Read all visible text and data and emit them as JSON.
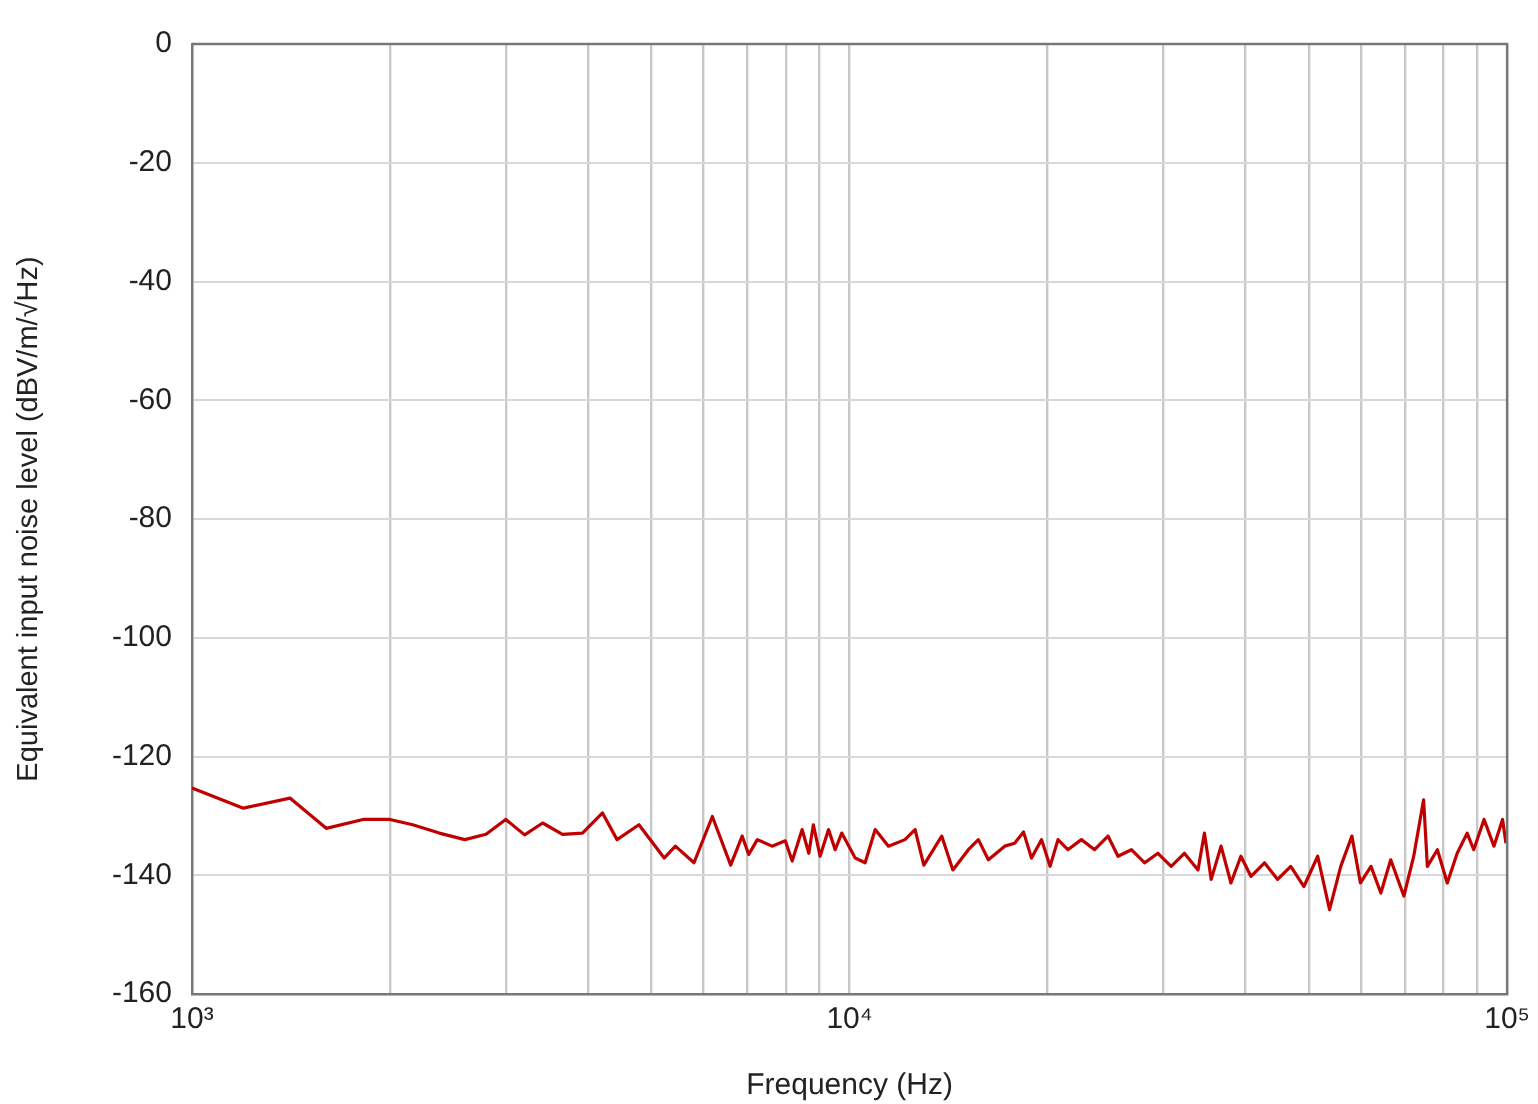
{
  "chart_data": {
    "type": "line",
    "xlabel": "Frequency (Hz)",
    "ylabel": "Equivalent input noise level (dBV/m/√Hz)",
    "log": "x",
    "grid": true,
    "legend": false,
    "marker": "none",
    "line_style": "solid",
    "xlim": [
      1000,
      100000
    ],
    "ylim": [
      -160,
      0
    ],
    "xticks": [
      {
        "value": 1000,
        "label": "10³"
      },
      {
        "value": 2000,
        "label": null
      },
      {
        "value": 3000,
        "label": null
      },
      {
        "value": 4000,
        "label": null
      },
      {
        "value": 5000,
        "label": null
      },
      {
        "value": 6000,
        "label": null
      },
      {
        "value": 7000,
        "label": null
      },
      {
        "value": 8000,
        "label": null
      },
      {
        "value": 9000,
        "label": null
      },
      {
        "value": 10000,
        "label": "10⁴"
      },
      {
        "value": 20000,
        "label": null
      },
      {
        "value": 30000,
        "label": null
      },
      {
        "value": 40000,
        "label": null
      },
      {
        "value": 50000,
        "label": null
      },
      {
        "value": 60000,
        "label": null
      },
      {
        "value": 70000,
        "label": null
      },
      {
        "value": 80000,
        "label": null
      },
      {
        "value": 90000,
        "label": null
      },
      {
        "value": 100000,
        "label": "10⁵"
      }
    ],
    "yticks": [
      -160,
      -140,
      -120,
      -100,
      -80,
      -60,
      -40,
      -20,
      0
    ],
    "series": [
      {
        "color": "#c00000",
        "x": [
          1000,
          1197,
          1409,
          1600,
          1820,
          2000,
          2166,
          2377,
          2600,
          2800,
          3000,
          3205,
          3414,
          3660,
          3925,
          4210,
          4430,
          4783,
          5225,
          5434,
          5800,
          6185,
          6595,
          6865,
          7025,
          7240,
          7625,
          7985,
          8180,
          8470,
          8670,
          8810,
          9020,
          9290,
          9510,
          9730,
          10200,
          10560,
          10940,
          11460,
          12140,
          12580,
          12970,
          13810,
          14360,
          15160,
          15700,
          16260,
          17220,
          17830,
          18390,
          18910,
          19590,
          20180,
          20750,
          21480,
          22520,
          23590,
          24720,
          25600,
          26830,
          28110,
          29440,
          30840,
          32300,
          33880,
          34650,
          35480,
          36730,
          38020,
          39370,
          40790,
          42760,
          44770,
          46880,
          49090,
          51520,
          53700,
          55850,
          58070,
          59840,
          62090,
          64270,
          66530,
          69660,
          72110,
          74650,
          75640,
          78340,
          81100,
          83970,
          86950,
          88970,
          92250,
          95500,
          98420,
          99600
        ],
        "values": [
          -125.3,
          -128.7,
          -127,
          -132.1,
          -130.6,
          -130.6,
          -131.5,
          -132.9,
          -134,
          -133.1,
          -130.6,
          -133.2,
          -131.2,
          -133.1,
          -132.9,
          -129.5,
          -134,
          -131.5,
          -137.1,
          -135.1,
          -137.9,
          -130.1,
          -138.3,
          -133.4,
          -136.5,
          -134,
          -135.1,
          -134.2,
          -137.6,
          -132.3,
          -136.3,
          -131.5,
          -136.8,
          -132.3,
          -135.7,
          -132.9,
          -137.1,
          -137.9,
          -132.3,
          -135.1,
          -134,
          -132.3,
          -138.3,
          -133.4,
          -139.1,
          -135.7,
          -134,
          -137.4,
          -135.1,
          -134.6,
          -132.7,
          -137.1,
          -134,
          -138.5,
          -134,
          -135.7,
          -134,
          -135.7,
          -133.4,
          -136.8,
          -135.7,
          -137.9,
          -136.3,
          -138.5,
          -136.3,
          -139.1,
          -132.9,
          -140.7,
          -135.1,
          -141.3,
          -136.8,
          -140.2,
          -137.9,
          -140.7,
          -138.5,
          -141.9,
          -136.8,
          -145.8,
          -138.5,
          -133.4,
          -141.3,
          -138.5,
          -143,
          -137.4,
          -143.5,
          -136.8,
          -127.3,
          -138.5,
          -135.7,
          -141.3,
          -136.3,
          -132.9,
          -135.7,
          -130.6,
          -135.1,
          -130.6,
          -134.6
        ]
      }
    ]
  }
}
